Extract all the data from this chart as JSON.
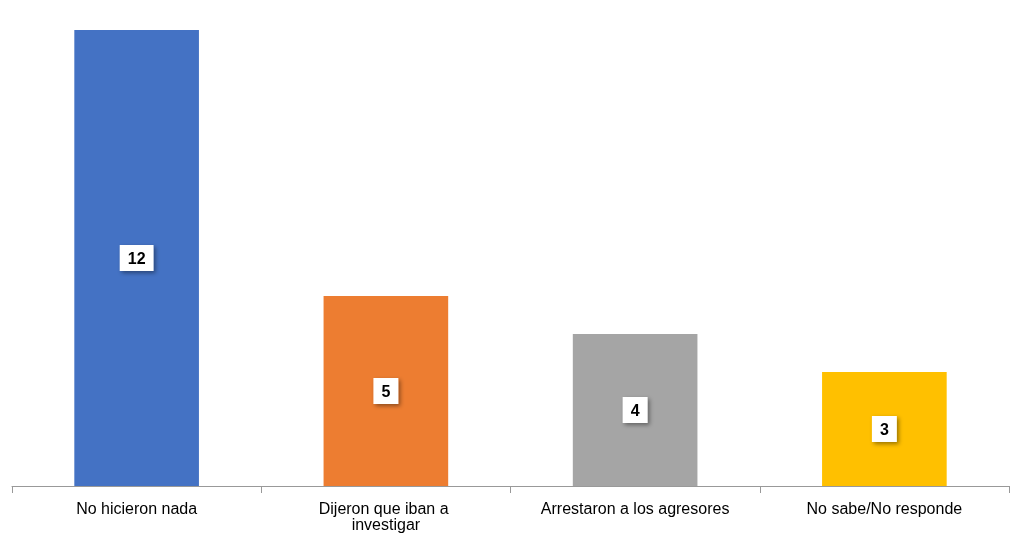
{
  "chart_data": {
    "type": "bar",
    "categories": [
      "No hicieron nada",
      "Dijeron que iban a investigar",
      "Arrestaron a los agresores",
      "No sabe/No responde"
    ],
    "values": [
      12,
      5,
      4,
      3
    ],
    "colors": [
      "#4472c4",
      "#ed7d31",
      "#a5a5a5",
      "#ffc000"
    ],
    "data_labels": true
  }
}
